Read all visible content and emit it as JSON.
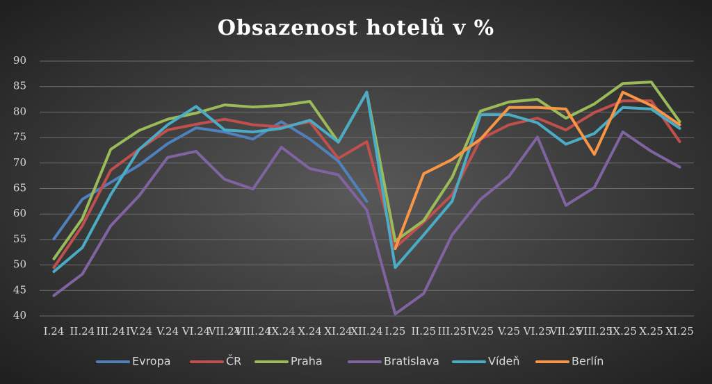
{
  "chart_data": {
    "type": "line",
    "title": "Obsazenost hotelů v %",
    "categories": [
      "I.24",
      "II.24",
      "III.24",
      "IV.24",
      "V.24",
      "VI.24",
      "VII.24",
      "VIII.24",
      "IX.24",
      "X.24",
      "XI.24",
      "XII.24",
      "I.25",
      "II.25",
      "III.25",
      "IV.25",
      "V.25",
      "VI.25",
      "VII.25",
      "VIII.25",
      "IX.25",
      "X.25",
      "XI.25"
    ],
    "series": [
      {
        "name": "Evropa",
        "color": "#4f81bd",
        "values": [
          55.1,
          62.9,
          66.2,
          69.6,
          73.8,
          76.9,
          76.1,
          74.7,
          78.1,
          74.7,
          70.4,
          62.5,
          null,
          null,
          null,
          null,
          null,
          null,
          null,
          null,
          null,
          null,
          null
        ]
      },
      {
        "name": "ČR",
        "color": "#c0504d",
        "values": [
          49.5,
          57.7,
          68.6,
          72.7,
          76.5,
          77.6,
          78.6,
          77.5,
          77.1,
          78.1,
          70.9,
          74.2,
          53.4,
          58.4,
          63.8,
          74.7,
          77.5,
          78.8,
          76.5,
          79.9,
          82.2,
          82.2,
          74.2
        ]
      },
      {
        "name": "Praha",
        "color": "#9bbb59",
        "values": [
          51.2,
          59.1,
          72.7,
          76.4,
          78.6,
          79.8,
          81.4,
          81.0,
          81.3,
          82.1,
          74.1,
          83.9,
          54.7,
          58.7,
          67.2,
          80.2,
          82.0,
          82.5,
          78.8,
          81.6,
          85.6,
          85.9,
          78.1
        ]
      },
      {
        "name": "Bratislava",
        "color": "#8064a2",
        "values": [
          44.0,
          48.2,
          57.7,
          63.6,
          71.1,
          72.3,
          66.8,
          64.9,
          73.1,
          68.9,
          67.7,
          60.8,
          40.4,
          44.4,
          55.9,
          62.9,
          67.4,
          75.1,
          61.7,
          65.2,
          76.1,
          72.3,
          69.2
        ]
      },
      {
        "name": "Vídeň",
        "color": "#4bacc6",
        "values": [
          48.7,
          53.4,
          63.8,
          72.7,
          77.5,
          81.1,
          76.5,
          76.1,
          76.8,
          78.4,
          74.1,
          83.9,
          49.5,
          55.9,
          62.5,
          79.5,
          79.5,
          77.9,
          73.7,
          75.8,
          80.9,
          80.6,
          76.8
        ]
      },
      {
        "name": "Berlín",
        "color": "#f79646",
        "values": [
          null,
          null,
          null,
          null,
          null,
          null,
          null,
          null,
          null,
          null,
          null,
          null,
          53.2,
          67.9,
          70.7,
          74.7,
          80.9,
          80.9,
          80.6,
          71.7,
          83.9,
          81.3,
          77.5
        ]
      }
    ],
    "ylim": [
      40,
      90
    ],
    "yticks": [
      40,
      45,
      50,
      55,
      60,
      65,
      70,
      75,
      80,
      85,
      90
    ],
    "grid": true,
    "legend": "bottom"
  }
}
